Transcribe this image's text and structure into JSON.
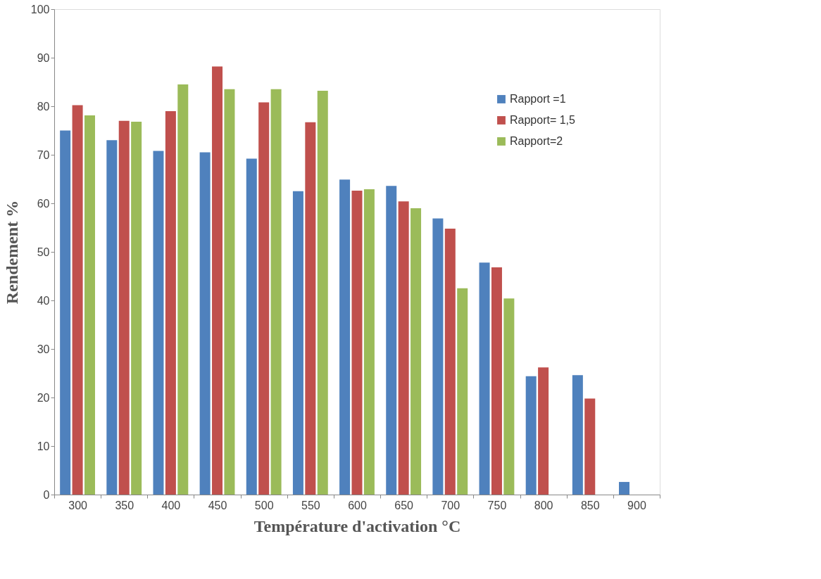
{
  "chart_data": {
    "type": "bar",
    "xlabel": "Température d'activation °C",
    "ylabel": "Rendement %",
    "categories": [
      "300",
      "350",
      "400",
      "450",
      "500",
      "550",
      "600",
      "650",
      "700",
      "750",
      "800",
      "850",
      "900"
    ],
    "series": [
      {
        "name": "Rapport =1",
        "color": "#4f81bd",
        "values": [
          75,
          73,
          70.8,
          70.5,
          69.2,
          62.5,
          64.9,
          63.6,
          56.9,
          47.8,
          24.4,
          24.6,
          2.6
        ]
      },
      {
        "name": "Rapport= 1,5",
        "color": "#c0504d",
        "values": [
          80.2,
          77,
          79,
          88.2,
          80.8,
          76.7,
          62.6,
          60.4,
          54.8,
          46.8,
          26.2,
          19.8,
          null
        ]
      },
      {
        "name": "Rapport=2",
        "color": "#9bbb59",
        "values": [
          78.1,
          76.8,
          84.5,
          83.5,
          83.5,
          83.2,
          62.9,
          59,
          42.5,
          40.4,
          null,
          null,
          null
        ]
      }
    ],
    "ylim": [
      0,
      100
    ],
    "yticks": [
      0,
      10,
      20,
      30,
      40,
      50,
      60,
      70,
      80,
      90,
      100
    ],
    "grid": false,
    "legend": "top right"
  }
}
